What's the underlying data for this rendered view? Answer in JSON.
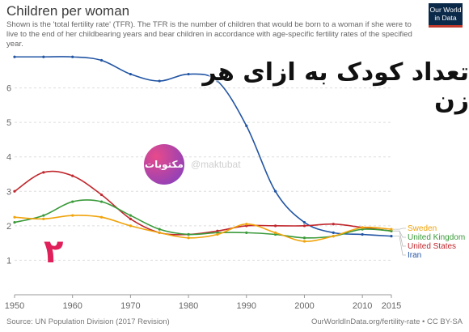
{
  "header": {
    "title": "Children per woman",
    "subtitle": "Shown is the 'total fertility rate' (TFR). The TFR is the number of children that would be born to a woman if she were to live to the end of her childbearing years and bear children in accordance with age-specific fertility rates of the specified year.",
    "logo_line1": "Our World",
    "logo_line2": "in Data"
  },
  "overlay": {
    "headline": "تعداد کودک به ازای هر زن",
    "badge": "مکتوبات",
    "watermark": "@maktubat",
    "handwritten_number": "۲"
  },
  "footer": {
    "source": "Source: UN Population Division (2017 Revision)",
    "credit": "OurWorldInData.org/fertility-rate • CC BY-SA"
  },
  "chart_data": {
    "type": "line",
    "title": "Children per woman",
    "xlabel": "",
    "ylabel": "",
    "xlim": [
      1950,
      2015
    ],
    "ylim": [
      0,
      7
    ],
    "xticks": [
      1950,
      1960,
      1970,
      1980,
      1990,
      2000,
      2010,
      2015
    ],
    "yticks": [
      1,
      2,
      3,
      4,
      5,
      6
    ],
    "grid": true,
    "legend": "right-end labels",
    "x": [
      1950,
      1955,
      1960,
      1965,
      1970,
      1975,
      1980,
      1985,
      1990,
      1995,
      2000,
      2005,
      2010,
      2015
    ],
    "series": [
      {
        "name": "Iran",
        "color": "#2255a4",
        "values": [
          6.9,
          6.9,
          6.9,
          6.8,
          6.4,
          6.2,
          6.4,
          6.2,
          4.9,
          3.0,
          2.1,
          1.8,
          1.75,
          1.7
        ]
      },
      {
        "name": "United States",
        "color": "#c0272d",
        "values": [
          3.0,
          3.55,
          3.45,
          2.9,
          2.2,
          1.8,
          1.75,
          1.85,
          2.0,
          2.0,
          2.0,
          2.05,
          1.95,
          1.85
        ]
      },
      {
        "name": "United Kingdom",
        "color": "#3a9a3a",
        "values": [
          2.1,
          2.3,
          2.7,
          2.7,
          2.3,
          1.9,
          1.75,
          1.8,
          1.8,
          1.75,
          1.65,
          1.7,
          1.9,
          1.85
        ]
      },
      {
        "name": "Sweden",
        "color": "#f0a30a",
        "values": [
          2.25,
          2.2,
          2.3,
          2.25,
          2.0,
          1.8,
          1.65,
          1.75,
          2.05,
          1.8,
          1.55,
          1.7,
          1.95,
          1.9
        ]
      }
    ]
  }
}
